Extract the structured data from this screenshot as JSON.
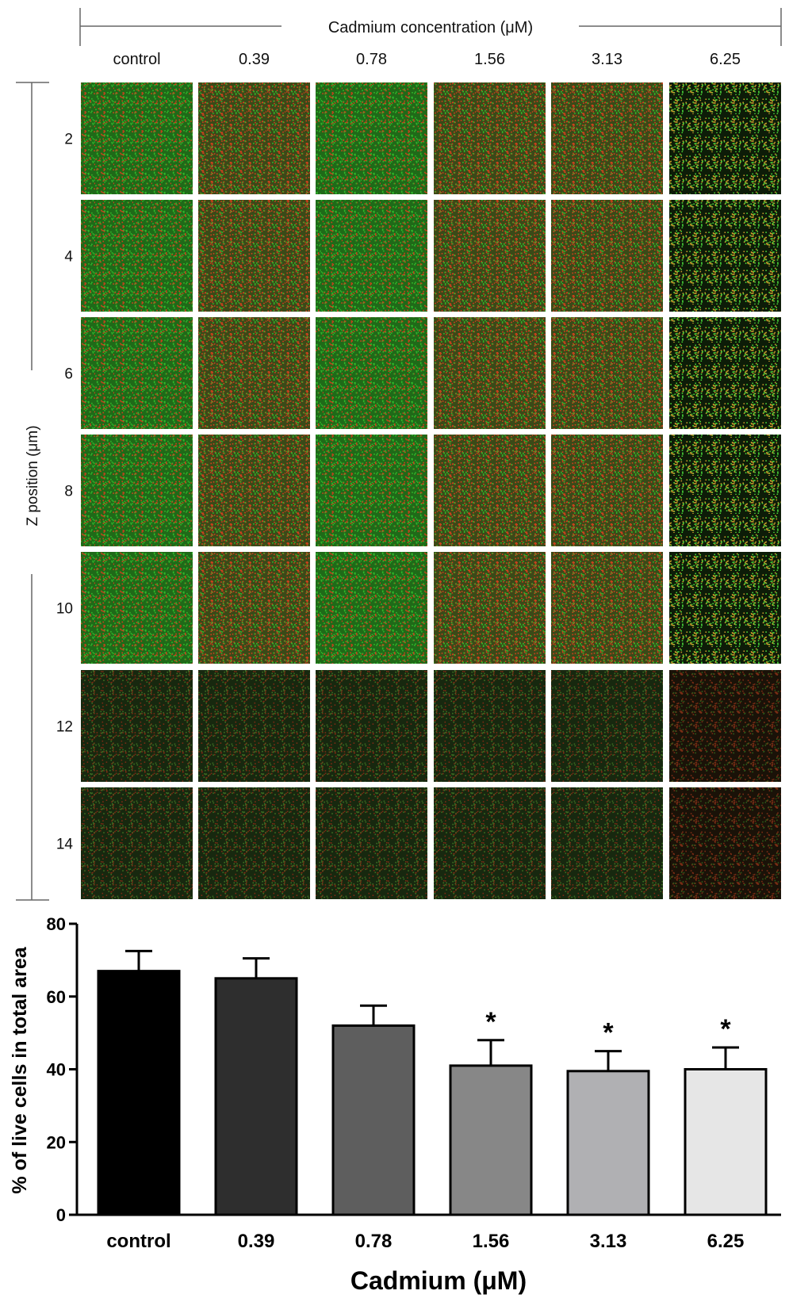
{
  "microscopy": {
    "header": "Cadmium concentration (μM)",
    "column_labels": [
      "control",
      "0.39",
      "0.78",
      "1.56",
      "3.13",
      "6.25"
    ],
    "row_axis_label": "Z position   (μm)",
    "row_labels": [
      "2",
      "4",
      "6",
      "8",
      "10",
      "12",
      "14"
    ],
    "stain_colors": {
      "live": "#2fb82a",
      "dead": "#d0401c",
      "background": "#0b1a08"
    }
  },
  "chart_data": {
    "type": "bar",
    "categories": [
      "control",
      "0.39",
      "0.78",
      "1.56",
      "3.13",
      "6.25"
    ],
    "values": [
      67,
      65,
      52,
      41,
      39.5,
      40
    ],
    "errors": [
      5.5,
      5.5,
      5.5,
      7,
      5.5,
      6
    ],
    "significant": [
      false,
      false,
      false,
      true,
      true,
      true
    ],
    "significance_marker": "*",
    "bar_colors": [
      "#000000",
      "#2e2e2e",
      "#5e5e5e",
      "#878787",
      "#b0b0b3",
      "#e6e6e6"
    ],
    "title": "",
    "xlabel": "Cadmium  (μM)",
    "ylabel": "% of live cells in total area",
    "ylim": [
      0,
      80
    ],
    "yticks": [
      "0",
      "20",
      "40",
      "60",
      "80"
    ],
    "grid": false
  }
}
